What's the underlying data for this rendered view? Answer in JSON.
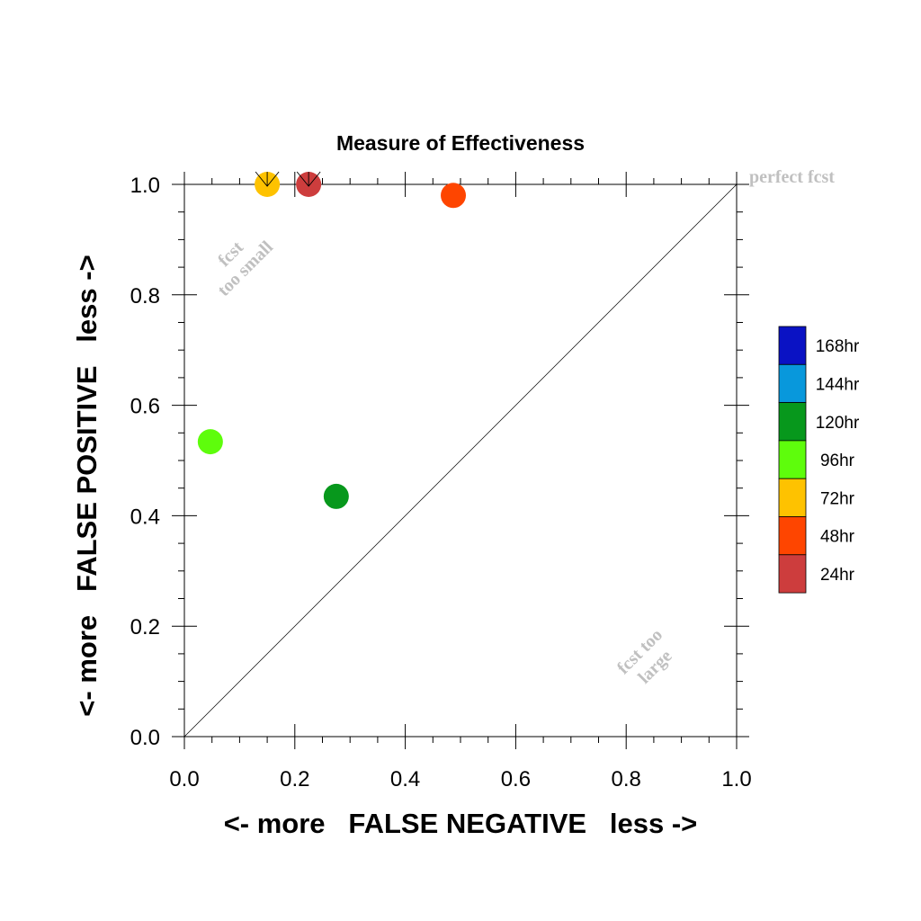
{
  "chart_data": {
    "type": "scatter",
    "title": "Measure of Effectiveness",
    "xlabel": "<- more   FALSE NEGATIVE   less ->",
    "ylabel": "<- more   FALSE POSITIVE   less ->",
    "xlim": [
      0,
      1
    ],
    "ylim": [
      0,
      1
    ],
    "xticks": [
      "0.0",
      "0.2",
      "0.4",
      "0.6",
      "0.8",
      "1.0"
    ],
    "yticks": [
      "0.0",
      "0.2",
      "0.4",
      "0.6",
      "0.8",
      "1.0"
    ],
    "grid": false,
    "diagonal": true,
    "annotations": {
      "perfect": "perfect fcst",
      "too_small_1": "fcst",
      "too_small_2": "too small",
      "too_large_1": "fcst too",
      "too_large_2": "large"
    },
    "legend": {
      "placement": "right",
      "entries": [
        {
          "label": "168hr",
          "color": "#0a12c4"
        },
        {
          "label": "144hr",
          "color": "#0898dc"
        },
        {
          "label": "120hr",
          "color": "#07981c"
        },
        {
          "label": "96hr",
          "color": "#5efd0c"
        },
        {
          "label": "72hr",
          "color": "#fec200"
        },
        {
          "label": "48hr",
          "color": "#fe4500"
        },
        {
          "label": "24hr",
          "color": "#cd3d3d"
        }
      ]
    },
    "points": [
      {
        "label": "72hr",
        "x": 0.15,
        "y": 1.0,
        "color": "#fec200",
        "arrow": true
      },
      {
        "label": "24hr",
        "x": 0.225,
        "y": 1.0,
        "color": "#cd3d3d",
        "arrow": true
      },
      {
        "label": "48hr",
        "x": 0.487,
        "y": 0.98,
        "color": "#fe4500",
        "arrow": false
      },
      {
        "label": "96hr",
        "x": 0.047,
        "y": 0.534,
        "color": "#5efd0c",
        "arrow": false
      },
      {
        "label": "120hr",
        "x": 0.275,
        "y": 0.435,
        "color": "#07981c",
        "arrow": false
      }
    ]
  }
}
